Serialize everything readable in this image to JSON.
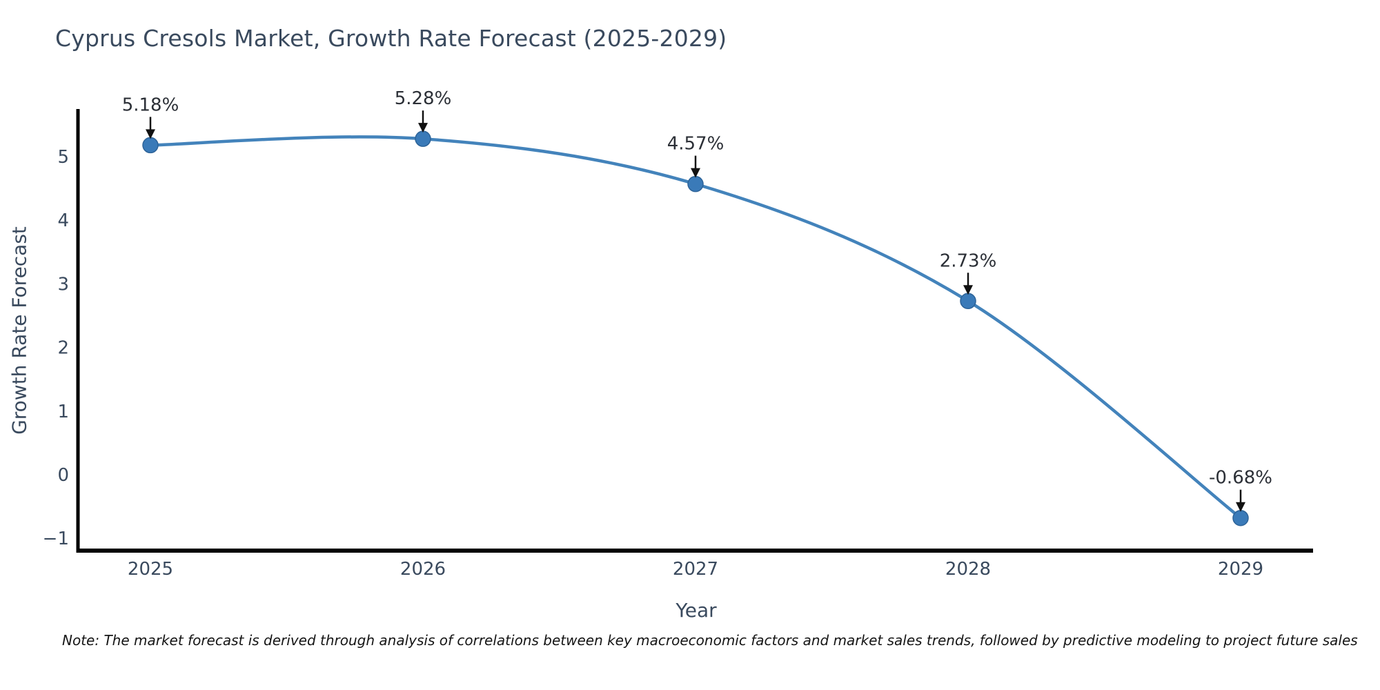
{
  "title": "Cyprus Cresols Market, Growth Rate Forecast (2025-2029)",
  "note": "Note: The market forecast is derived through analysis of correlations between key macroeconomic factors and market sales trends, followed by predictive modeling to project future sales",
  "chart_data": {
    "type": "line",
    "title": "Cyprus Cresols Market, Growth Rate Forecast (2025-2029)",
    "xlabel": "Year",
    "ylabel": "Growth Rate Forecast",
    "categories": [
      "2025",
      "2026",
      "2027",
      "2028",
      "2029"
    ],
    "series": [
      {
        "name": "Growth Rate Forecast",
        "values": [
          5.18,
          5.28,
          4.57,
          2.73,
          -0.68
        ]
      }
    ],
    "point_labels": [
      "5.18%",
      "5.28%",
      "4.57%",
      "2.73%",
      "-0.68%"
    ],
    "yticks": [
      -1,
      0,
      1,
      2,
      3,
      4,
      5
    ],
    "ytick_labels": [
      "−1",
      "0",
      "1",
      "2",
      "3",
      "4",
      "5"
    ],
    "ylim": [
      -1.2,
      5.8
    ],
    "grid": false,
    "legend": "none",
    "annotation_style": "arrow-down-to-point",
    "curve": "smooth-spline",
    "colors": {
      "line": "#4383bb",
      "marker_fill": "#3a7ab8",
      "marker_edge": "#2d6398",
      "arrow": "#111111",
      "annotation_text": "#2b2f36",
      "axis": "#000000",
      "axis_text": "#3a4a5e",
      "background": "#ffffff"
    }
  }
}
